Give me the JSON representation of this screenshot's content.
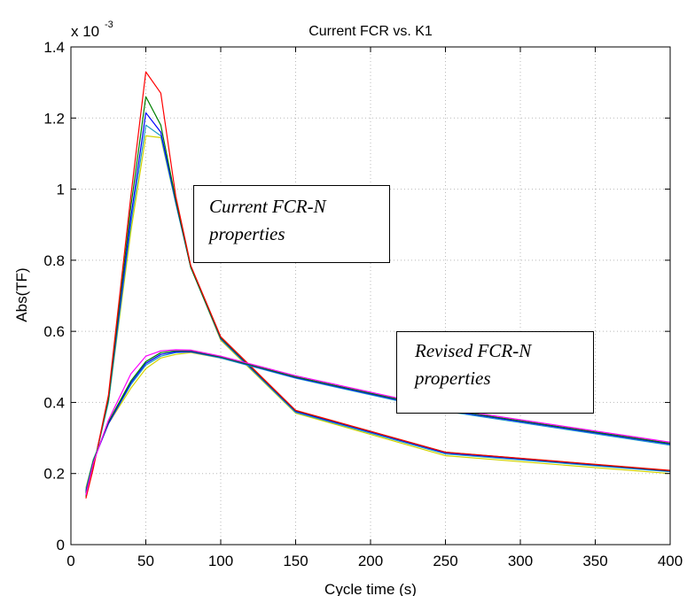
{
  "chart_data": {
    "type": "line",
    "title": "Current FCR vs. K1",
    "xlabel": "Cycle time (s)",
    "ylabel": "Abs(TF)",
    "exponent_label": "x 10",
    "exponent_power": "-3",
    "xlim": [
      0,
      400
    ],
    "ylim": [
      0,
      1.4
    ],
    "y_scale_note": "values in units of 1e-3",
    "grid": true,
    "x_ticks": [
      0,
      50,
      100,
      150,
      200,
      250,
      300,
      350,
      400
    ],
    "x_tick_labels": [
      "0",
      "50",
      "100",
      "150",
      "200",
      "250",
      "300",
      "350",
      "400"
    ],
    "y_ticks": [
      0,
      0.2,
      0.4,
      0.6,
      0.8,
      1.0,
      1.2,
      1.4
    ],
    "y_tick_labels": [
      "0",
      "0.2",
      "0.4",
      "0.6",
      "0.8",
      "1",
      "1.2",
      "1.4"
    ],
    "x": [
      10,
      15,
      25,
      40,
      50,
      60,
      70,
      80,
      100,
      150,
      250,
      400
    ],
    "series": [
      {
        "group": "current",
        "color": "#d4d400",
        "values": [
          0.15,
          0.22,
          0.4,
          0.88,
          1.15,
          1.145,
          0.96,
          0.78,
          0.575,
          0.37,
          0.25,
          0.2
        ]
      },
      {
        "group": "current",
        "color": "#1f9cc4",
        "values": [
          0.145,
          0.22,
          0.4,
          0.9,
          1.18,
          1.15,
          0.96,
          0.78,
          0.578,
          0.372,
          0.255,
          0.205
        ]
      },
      {
        "group": "current",
        "color": "#0000ff",
        "values": [
          0.14,
          0.22,
          0.41,
          0.92,
          1.215,
          1.16,
          0.965,
          0.78,
          0.58,
          0.375,
          0.258,
          0.207
        ]
      },
      {
        "group": "current",
        "color": "#008000",
        "values": [
          0.135,
          0.22,
          0.41,
          0.95,
          1.26,
          1.18,
          0.97,
          0.78,
          0.582,
          0.377,
          0.26,
          0.208
        ]
      },
      {
        "group": "current",
        "color": "#ff0000",
        "values": [
          0.13,
          0.215,
          0.42,
          0.98,
          1.33,
          1.27,
          0.98,
          0.785,
          0.585,
          0.378,
          0.26,
          0.209
        ]
      },
      {
        "group": "revised",
        "color": "#d4d400",
        "values": [
          0.16,
          0.24,
          0.34,
          0.44,
          0.495,
          0.525,
          0.535,
          0.54,
          0.525,
          0.47,
          0.38,
          0.285
        ]
      },
      {
        "group": "revised",
        "color": "#1f9cc4",
        "values": [
          0.155,
          0.24,
          0.34,
          0.45,
          0.505,
          0.53,
          0.54,
          0.542,
          0.525,
          0.468,
          0.375,
          0.28
        ]
      },
      {
        "group": "revised",
        "color": "#0000ff",
        "values": [
          0.15,
          0.235,
          0.34,
          0.455,
          0.51,
          0.535,
          0.542,
          0.543,
          0.527,
          0.47,
          0.378,
          0.283
        ]
      },
      {
        "group": "revised",
        "color": "#008000",
        "values": [
          0.145,
          0.235,
          0.345,
          0.46,
          0.515,
          0.54,
          0.545,
          0.545,
          0.528,
          0.472,
          0.38,
          0.285
        ]
      },
      {
        "group": "revised",
        "color": "#ff00ff",
        "values": [
          0.14,
          0.23,
          0.35,
          0.48,
          0.53,
          0.545,
          0.548,
          0.547,
          0.53,
          0.475,
          0.383,
          0.288
        ]
      }
    ],
    "annotations": [
      {
        "id": "current",
        "lines": [
          "Current FCR-N",
          "properties"
        ]
      },
      {
        "id": "revised",
        "lines": [
          "Revised FCR-N",
          "properties"
        ]
      }
    ]
  }
}
